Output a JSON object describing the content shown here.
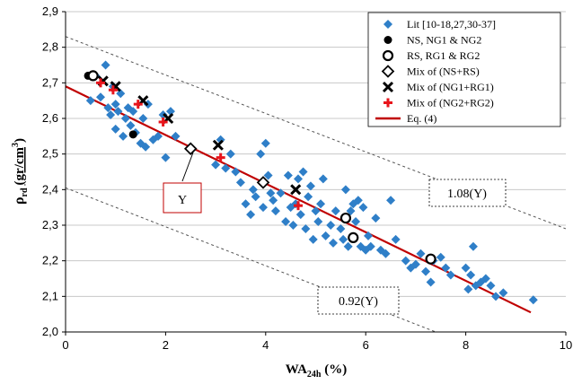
{
  "chart_data": {
    "type": "scatter",
    "title": "",
    "xlabel": "WA24h (%)",
    "xlabel_main": "WA",
    "xlabel_sub": "24h",
    "xlabel_unit": " (%)",
    "ylabel_rho": "ρ",
    "ylabel_sub": "rd",
    "ylabel_unit": "(gr/cm",
    "ylabel_sup": "3",
    "ylabel_close": ")",
    "xlim": [
      0,
      10
    ],
    "ylim": [
      2.0,
      2.9
    ],
    "x_ticks": [
      "0",
      "2",
      "4",
      "6",
      "8",
      "10"
    ],
    "y_ticks": [
      "2,0",
      "2,1",
      "2,2",
      "2,3",
      "2,4",
      "2,5",
      "2,6",
      "2,7",
      "2,8",
      "2,9"
    ],
    "x_tick_values": [
      0,
      2,
      4,
      6,
      8,
      10
    ],
    "y_tick_values": [
      2.0,
      2.1,
      2.2,
      2.3,
      2.4,
      2.5,
      2.6,
      2.7,
      2.8,
      2.9
    ],
    "grid": "horizontal",
    "legend_position": "top-right",
    "colors": {
      "lit": "#2f7fc8",
      "eq": "#c00000",
      "mix_ng2": "#e8141b",
      "black": "#000000"
    },
    "series": [
      {
        "name": "Lit [10-18,27,30-37]",
        "marker": "diamond",
        "points": [
          [
            0.5,
            2.65
          ],
          [
            0.6,
            2.72
          ],
          [
            0.7,
            2.66
          ],
          [
            0.8,
            2.75
          ],
          [
            0.85,
            2.63
          ],
          [
            0.9,
            2.61
          ],
          [
            0.95,
            2.69
          ],
          [
            1.0,
            2.64
          ],
          [
            1.0,
            2.57
          ],
          [
            1.05,
            2.62
          ],
          [
            1.1,
            2.67
          ],
          [
            1.15,
            2.55
          ],
          [
            1.2,
            2.6
          ],
          [
            1.25,
            2.63
          ],
          [
            1.3,
            2.58
          ],
          [
            1.35,
            2.62
          ],
          [
            1.4,
            2.56
          ],
          [
            1.5,
            2.53
          ],
          [
            1.55,
            2.6
          ],
          [
            1.6,
            2.52
          ],
          [
            1.65,
            2.64
          ],
          [
            1.75,
            2.54
          ],
          [
            1.85,
            2.55
          ],
          [
            1.95,
            2.61
          ],
          [
            2.0,
            2.49
          ],
          [
            2.1,
            2.62
          ],
          [
            2.2,
            2.55
          ],
          [
            3.0,
            2.47
          ],
          [
            3.1,
            2.54
          ],
          [
            3.2,
            2.46
          ],
          [
            3.3,
            2.5
          ],
          [
            3.4,
            2.45
          ],
          [
            3.5,
            2.42
          ],
          [
            3.6,
            2.36
          ],
          [
            3.7,
            2.33
          ],
          [
            3.75,
            2.4
          ],
          [
            3.8,
            2.38
          ],
          [
            3.9,
            2.5
          ],
          [
            3.95,
            2.35
          ],
          [
            4.0,
            2.53
          ],
          [
            4.05,
            2.44
          ],
          [
            4.1,
            2.39
          ],
          [
            4.15,
            2.37
          ],
          [
            4.2,
            2.34
          ],
          [
            4.3,
            2.39
          ],
          [
            4.4,
            2.31
          ],
          [
            4.45,
            2.44
          ],
          [
            4.5,
            2.35
          ],
          [
            4.55,
            2.3
          ],
          [
            4.6,
            2.36
          ],
          [
            4.65,
            2.43
          ],
          [
            4.7,
            2.33
          ],
          [
            4.75,
            2.45
          ],
          [
            4.8,
            2.29
          ],
          [
            4.85,
            2.38
          ],
          [
            4.9,
            2.41
          ],
          [
            4.95,
            2.26
          ],
          [
            5.0,
            2.34
          ],
          [
            5.05,
            2.31
          ],
          [
            5.1,
            2.36
          ],
          [
            5.15,
            2.43
          ],
          [
            5.2,
            2.27
          ],
          [
            5.3,
            2.3
          ],
          [
            5.35,
            2.25
          ],
          [
            5.4,
            2.34
          ],
          [
            5.5,
            2.29
          ],
          [
            5.55,
            2.26
          ],
          [
            5.6,
            2.4
          ],
          [
            5.65,
            2.24
          ],
          [
            5.7,
            2.34
          ],
          [
            5.75,
            2.36
          ],
          [
            5.8,
            2.31
          ],
          [
            5.85,
            2.37
          ],
          [
            5.9,
            2.24
          ],
          [
            5.95,
            2.35
          ],
          [
            6.0,
            2.23
          ],
          [
            6.05,
            2.27
          ],
          [
            6.1,
            2.24
          ],
          [
            6.2,
            2.32
          ],
          [
            6.3,
            2.23
          ],
          [
            6.4,
            2.22
          ],
          [
            6.5,
            2.37
          ],
          [
            6.6,
            2.26
          ],
          [
            6.8,
            2.2
          ],
          [
            6.9,
            2.18
          ],
          [
            7.0,
            2.19
          ],
          [
            7.1,
            2.22
          ],
          [
            7.2,
            2.17
          ],
          [
            7.3,
            2.14
          ],
          [
            7.35,
            2.2
          ],
          [
            7.5,
            2.21
          ],
          [
            7.6,
            2.18
          ],
          [
            7.7,
            2.16
          ],
          [
            8.0,
            2.18
          ],
          [
            8.05,
            2.12
          ],
          [
            8.1,
            2.16
          ],
          [
            8.15,
            2.24
          ],
          [
            8.2,
            2.13
          ],
          [
            8.3,
            2.14
          ],
          [
            8.4,
            2.15
          ],
          [
            8.5,
            2.13
          ],
          [
            8.6,
            2.1
          ],
          [
            8.75,
            2.11
          ],
          [
            9.35,
            2.09
          ]
        ]
      },
      {
        "name": "NS, NG1 & NG2",
        "marker": "filled-circle",
        "points": [
          [
            0.45,
            2.72
          ],
          [
            1.35,
            2.555
          ]
        ]
      },
      {
        "name": "RS, RG1 & RG2",
        "marker": "open-circle",
        "points": [
          [
            0.55,
            2.72
          ],
          [
            5.6,
            2.32
          ],
          [
            5.75,
            2.265
          ],
          [
            7.3,
            2.205
          ]
        ]
      },
      {
        "name": "Mix of (NS+RS)",
        "marker": "open-diamond",
        "points": [
          [
            2.5,
            2.515
          ],
          [
            3.95,
            2.42
          ]
        ]
      },
      {
        "name": "Mix of (NG1+RG1)",
        "marker": "x",
        "points": [
          [
            0.75,
            2.705
          ],
          [
            1.0,
            2.69
          ],
          [
            1.55,
            2.65
          ],
          [
            2.05,
            2.6
          ],
          [
            3.05,
            2.525
          ],
          [
            4.6,
            2.4
          ]
        ]
      },
      {
        "name": "Mix of (NG2+RG2)",
        "marker": "plus",
        "points": [
          [
            0.7,
            2.7
          ],
          [
            0.95,
            2.68
          ],
          [
            1.45,
            2.64
          ],
          [
            1.95,
            2.59
          ],
          [
            3.1,
            2.49
          ],
          [
            4.65,
            2.355
          ]
        ]
      },
      {
        "name": "Eq. (4)",
        "marker": "line",
        "points": [
          [
            0,
            2.69
          ],
          [
            9.3,
            2.055
          ]
        ]
      }
    ],
    "bounds": {
      "upper": {
        "label": "1.08(Y)",
        "points": [
          [
            0,
            2.83
          ],
          [
            10,
            2.29
          ]
        ]
      },
      "lower": {
        "label": "0.92(Y)",
        "points": [
          [
            0,
            2.405
          ],
          [
            7.4,
            2.0
          ]
        ]
      }
    },
    "annotations": [
      {
        "text": "Y"
      },
      {
        "text": "1.08(Y)"
      },
      {
        "text": "0.92(Y)"
      }
    ]
  }
}
